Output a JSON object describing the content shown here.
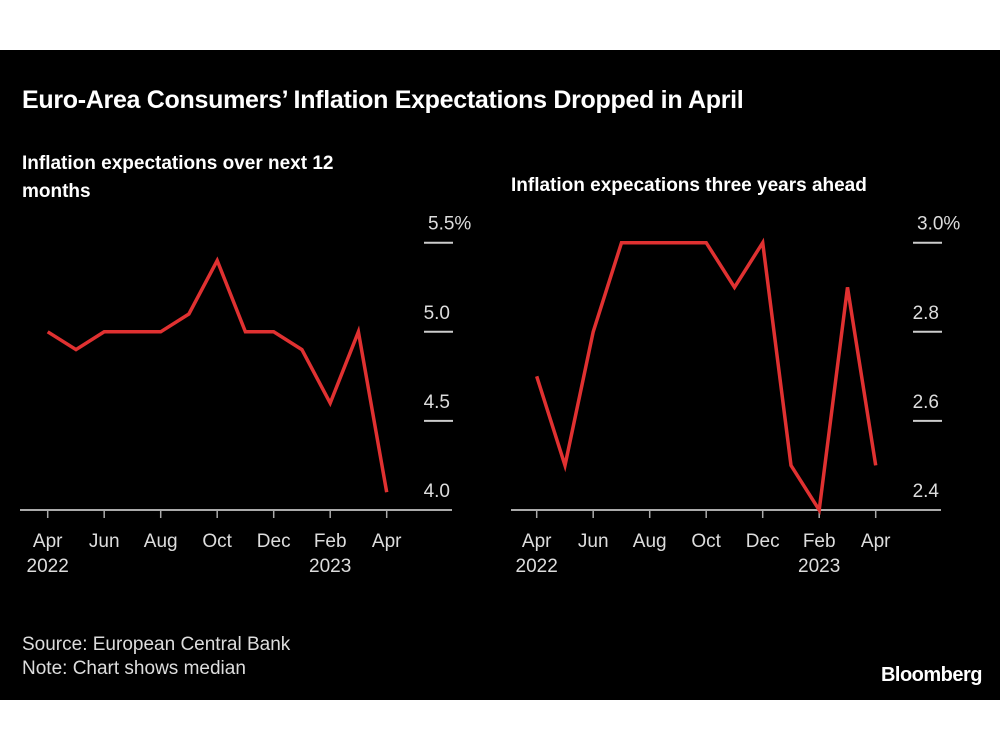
{
  "title": "Euro-Area Consumers’ Inflation Expectations Dropped in April",
  "source": "Source: European Central Bank",
  "note": "Note: Chart shows median",
  "logo": "Bloomberg",
  "colors": {
    "line": "#e03131",
    "background": "#000000",
    "text": "#ffffff",
    "axis": "#aaaaaa"
  },
  "chart_data": [
    {
      "type": "line",
      "title": "Inflation expectations over next 12 months",
      "x": [
        "Apr 2022",
        "May 2022",
        "Jun 2022",
        "Jul 2022",
        "Aug 2022",
        "Sep 2022",
        "Oct 2022",
        "Nov 2022",
        "Dec 2022",
        "Jan 2023",
        "Feb 2023",
        "Mar 2023",
        "Apr 2023"
      ],
      "values": [
        5.0,
        4.9,
        5.0,
        5.0,
        5.0,
        5.1,
        5.4,
        5.0,
        5.0,
        4.9,
        4.6,
        5.0,
        4.1
      ],
      "ylim": [
        4.0,
        5.5
      ],
      "yticks": [
        "4.0",
        "4.5",
        "5.0",
        "5.5%"
      ],
      "xtick_labels": [
        "Apr",
        "Jun",
        "Aug",
        "Oct",
        "Dec",
        "Feb",
        "Apr"
      ],
      "xtick_years": [
        "2022",
        "",
        "",
        "",
        "",
        "2023",
        ""
      ],
      "grid": false
    },
    {
      "type": "line",
      "title": "Inflation expecations three years ahead",
      "x": [
        "Apr 2022",
        "May 2022",
        "Jun 2022",
        "Jul 2022",
        "Aug 2022",
        "Sep 2022",
        "Oct 2022",
        "Nov 2022",
        "Dec 2022",
        "Jan 2023",
        "Feb 2023",
        "Mar 2023",
        "Apr 2023"
      ],
      "values": [
        2.7,
        2.5,
        2.8,
        3.0,
        3.0,
        3.0,
        3.0,
        2.9,
        3.0,
        2.5,
        2.4,
        2.9,
        2.5
      ],
      "ylim": [
        2.4,
        3.0
      ],
      "yticks": [
        "2.4",
        "2.6",
        "2.8",
        "3.0%"
      ],
      "xtick_labels": [
        "Apr",
        "Jun",
        "Aug",
        "Oct",
        "Dec",
        "Feb",
        "Apr"
      ],
      "xtick_years": [
        "2022",
        "",
        "",
        "",
        "",
        "2023",
        ""
      ],
      "grid": false
    }
  ]
}
